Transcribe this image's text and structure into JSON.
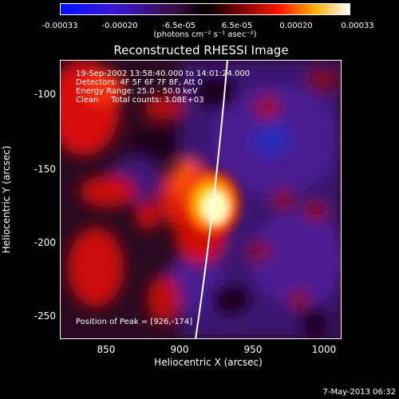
{
  "colorbar": {
    "ticks": [
      "-0.00033",
      "-0.00020",
      "-6.5e-05",
      "6.5e-05",
      "0.00020",
      "0.00033"
    ],
    "units": "(photons cm⁻² s⁻¹ asec⁻²)"
  },
  "title": "Reconstructed RHESSI Image",
  "annotations": {
    "time_range": "19-Sep-2002 13:58:40.000 to 14:01:24.000",
    "detectors": "Detectors: 4F 5F 6F 7F 8F, Att 0",
    "energy": "Energy Range: 25.0 - 50.0 keV",
    "clean": "Clean     Total counts: 3.08E+03",
    "peak": "Position of Peak = [926,-174]"
  },
  "axes": {
    "x_ticks": [
      "850",
      "900",
      "950",
      "1000"
    ],
    "y_ticks": [
      "-100",
      "-150",
      "-200",
      "-250"
    ],
    "xlabel": "Heliocentric X (arcsec)",
    "ylabel": "Heliocentric Y (arcsec)"
  },
  "footer_date": "7-May-2013 06:32",
  "colors": {
    "background": "#000000",
    "limb_line": "#ffffff",
    "negative_dark": "#0000ff",
    "positive_hot": "#ffff80"
  }
}
